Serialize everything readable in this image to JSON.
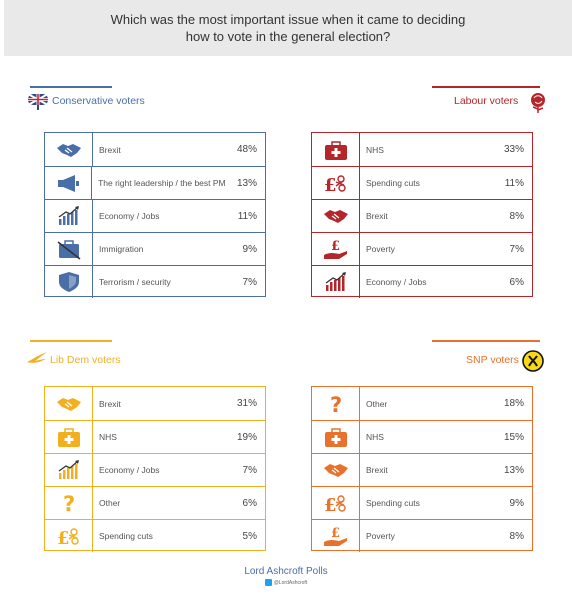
{
  "header": {
    "line1": "Which was the most important issue when it came to deciding",
    "line2": "how to vote in the general election?"
  },
  "colors": {
    "conservative": "#4a6ea8",
    "labour": "#b5262b",
    "libdem": "#f2b01e",
    "snp": "#e8722b"
  },
  "chart_data": [
    {
      "type": "table",
      "title": "Conservative voters",
      "categories": [
        "Brexit",
        "The right leadership / the best PM",
        "Economy / Jobs",
        "Immigration",
        "Terrorism / security"
      ],
      "display": [
        "48%",
        "13%",
        "11%",
        "9%",
        "7%"
      ],
      "values": [
        48,
        13,
        11,
        9,
        7
      ],
      "icons": [
        "handshake-icon",
        "megaphone-icon",
        "growth-chart-icon",
        "suitcase-icon",
        "shield-icon"
      ]
    },
    {
      "type": "table",
      "title": "Labour voters",
      "categories": [
        "NHS",
        "Spending cuts",
        "Brexit",
        "Poverty",
        "Economy / Jobs"
      ],
      "display": [
        "33%",
        "11%",
        "8%",
        "7%",
        "6%"
      ],
      "values": [
        33,
        11,
        8,
        7,
        6
      ],
      "icons": [
        "medical-case-icon",
        "pound-scissors-icon",
        "handshake-icon",
        "pound-hand-icon",
        "growth-chart-icon"
      ]
    },
    {
      "type": "table",
      "title": "Lib Dem voters",
      "categories": [
        "Brexit",
        "NHS",
        "Economy / Jobs",
        "Other",
        "Spending cuts"
      ],
      "display": [
        "31%",
        "19%",
        "7%",
        "6%",
        "5%"
      ],
      "values": [
        31,
        19,
        7,
        6,
        5
      ],
      "icons": [
        "handshake-icon",
        "medical-case-icon",
        "growth-chart-icon",
        "question-icon",
        "pound-scissors-icon"
      ]
    },
    {
      "type": "table",
      "title": "SNP voters",
      "categories": [
        "Other",
        "NHS",
        "Brexit",
        "Spending cuts",
        "Poverty"
      ],
      "display": [
        "18%",
        "15%",
        "13%",
        "9%",
        "8%"
      ],
      "values": [
        18,
        15,
        13,
        9,
        8
      ],
      "icons": [
        "question-icon",
        "medical-case-icon",
        "handshake-icon",
        "pound-scissors-icon",
        "pound-hand-icon"
      ]
    }
  ],
  "footer": {
    "brand": "Lord Ashcroft Polls",
    "handle": "@LordAshcroft"
  }
}
